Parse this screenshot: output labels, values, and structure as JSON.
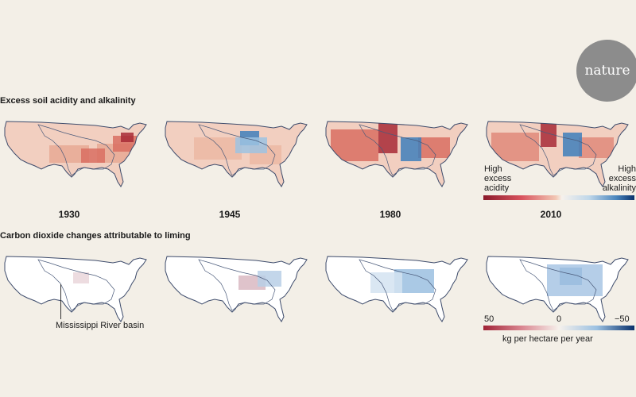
{
  "logo": {
    "text": "nature"
  },
  "sections": {
    "acidity_title": "Excess soil acidity and alkalinity",
    "co2_title": "Carbon dioxide changes attributable to liming"
  },
  "years": [
    "1930",
    "1945",
    "1980",
    "2010"
  ],
  "legend_acidity": {
    "left": "High\nexcess\nacidity",
    "right": "High\nexcess\nalkalinity",
    "colors": [
      "#8b1a2b",
      "#d8525d",
      "#f2c7b4",
      "#f6f1ec",
      "#4b86bd",
      "#08306b"
    ]
  },
  "legend_co2": {
    "ticks": [
      "50",
      "0",
      "−50"
    ],
    "unit": "kg per hectare per year",
    "colors": [
      "#a02336",
      "#f6f1ec",
      "#08306b"
    ]
  },
  "annotation": {
    "text": "Mississippi River basin"
  }
}
